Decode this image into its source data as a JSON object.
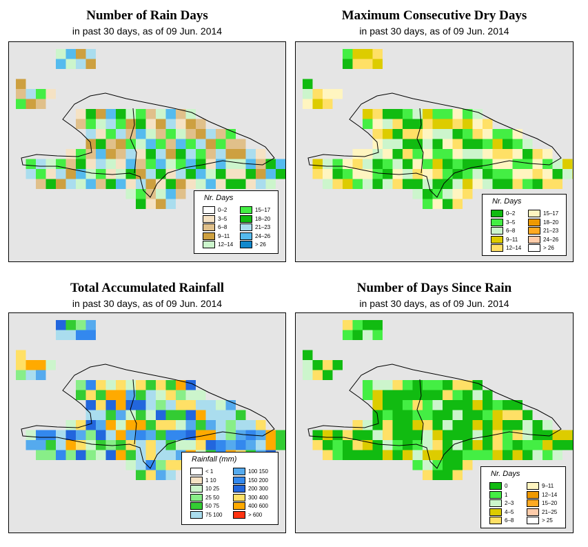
{
  "panels": [
    {
      "title": "Number of Rain Days",
      "subtitle": "in past 30 days, as of  09 Jun. 2014",
      "legend": {
        "title": "Nr. Days",
        "items": [
          {
            "label": "0–2",
            "color": "#ffffff"
          },
          {
            "label": "3–5",
            "color": "#f5e2c4"
          },
          {
            "label": "6–8",
            "color": "#e0c08a"
          },
          {
            "label": "9–11",
            "color": "#cda040"
          },
          {
            "label": "12–14",
            "color": "#ccf5cc"
          },
          {
            "label": "15–17",
            "color": "#44ee44"
          },
          {
            "label": "18–20",
            "color": "#11bb11"
          },
          {
            "label": "21–23",
            "color": "#aaddee"
          },
          {
            "label": "24–26",
            "color": "#55bbee"
          },
          {
            "label": "> 26",
            "color": "#1188cc"
          }
        ]
      }
    },
    {
      "title": "Maximum Consecutive Dry Days",
      "subtitle": "in past 30 days, as of  09 Jun. 2014",
      "legend": {
        "title": "Nr. Days",
        "items": [
          {
            "label": "0–2",
            "color": "#11bb11"
          },
          {
            "label": "3–5",
            "color": "#44ee44"
          },
          {
            "label": "6–8",
            "color": "#ccf5cc"
          },
          {
            "label": "9–11",
            "color": "#ddcc00"
          },
          {
            "label": "12–14",
            "color": "#ffe066"
          },
          {
            "label": "15–17",
            "color": "#fff5c0"
          },
          {
            "label": "18–20",
            "color": "#ee9900"
          },
          {
            "label": "21–23",
            "color": "#ffaa22"
          },
          {
            "label": "24–26",
            "color": "#ffccaa"
          },
          {
            "label": "> 26",
            "color": "#ffffff"
          }
        ]
      }
    },
    {
      "title": "Total Accumulated Rainfall",
      "subtitle": "in past 30 days, as of  09 Jun. 2014",
      "legend": {
        "title": "Rainfall (mm)",
        "items": [
          {
            "label": "< 1",
            "color": "#ffffff"
          },
          {
            "label": "1    10",
            "color": "#f5e2c4"
          },
          {
            "label": "10    25",
            "color": "#ccf5cc"
          },
          {
            "label": "25    50",
            "color": "#88ee88"
          },
          {
            "label": "50    75",
            "color": "#33cc33"
          },
          {
            "label": "75   100",
            "color": "#aaddee"
          },
          {
            "label": "100   150",
            "color": "#55aaee"
          },
          {
            "label": "150   200",
            "color": "#3388ee"
          },
          {
            "label": "200   300",
            "color": "#2266dd"
          },
          {
            "label": "300   400",
            "color": "#ffe066"
          },
          {
            "label": "400   600",
            "color": "#ffaa00"
          },
          {
            "label": "> 600",
            "color": "#ff3311"
          }
        ]
      }
    },
    {
      "title": "Number of Days Since Rain",
      "subtitle": "in past 30 days, as of  09 Jun. 2014",
      "legend": {
        "title": "Nr. Days",
        "items": [
          {
            "label": "0",
            "color": "#11bb11"
          },
          {
            "label": "1",
            "color": "#44ee44"
          },
          {
            "label": "2–3",
            "color": "#ccf5cc"
          },
          {
            "label": "4–5",
            "color": "#ddcc00"
          },
          {
            "label": "6–8",
            "color": "#ffe066"
          },
          {
            "label": "9–11",
            "color": "#fff5c0"
          },
          {
            "label": "12–14",
            "color": "#ee9900"
          },
          {
            "label": "15–20",
            "color": "#ffaa22"
          },
          {
            "label": "21–25",
            "color": "#ffccaa"
          },
          {
            "label": "> 25",
            "color": "#ffffff"
          }
        ]
      }
    }
  ]
}
